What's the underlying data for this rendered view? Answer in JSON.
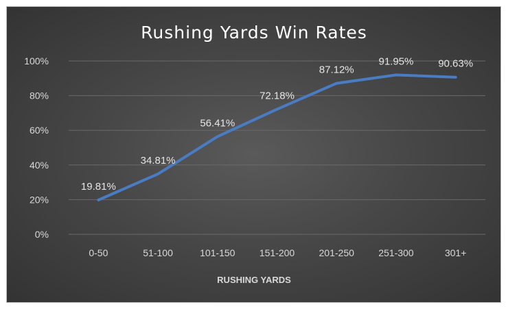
{
  "chart_data": {
    "type": "line",
    "title": "Rushing Yards Win Rates",
    "xlabel": "RUSHING YARDS",
    "ylabel": "",
    "categories": [
      "0-50",
      "51-100",
      "101-150",
      "151-200",
      "201-250",
      "251-300",
      "301+"
    ],
    "series": [
      {
        "values": [
          19.81,
          34.81,
          56.41,
          72.18,
          87.12,
          91.95,
          90.63
        ],
        "data_labels": [
          "19.81%",
          "34.81%",
          "56.41%",
          "72.18%",
          "87.12%",
          "91.95%",
          "90.63%"
        ],
        "color": "#4a7cc4"
      }
    ],
    "ylim": [
      0,
      100
    ],
    "y_ticks": [
      0,
      20,
      40,
      60,
      80,
      100
    ],
    "y_tick_labels": [
      "0%",
      "20%",
      "40%",
      "60%",
      "80%",
      "100%"
    ],
    "grid": true,
    "legend": "none"
  }
}
